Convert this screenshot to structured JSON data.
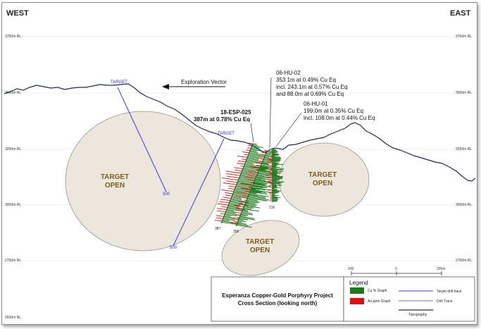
{
  "directions": {
    "west": "WEST",
    "east": "EAST"
  },
  "rl_labels": [
    "3750m RL",
    "3500m RL",
    "3250m RL",
    "3000m RL",
    "2750m RL",
    "2500m RL"
  ],
  "targets": {
    "open_label_line1": "TARGET",
    "open_label_line2": "OPEN",
    "drill_target_label": "TARGET",
    "drill_depth_label": "500"
  },
  "exploration_vector": "Exploration Vector",
  "holes": {
    "esp025": {
      "name": "18-ESP-025",
      "result": "387m at 0.78% Cu Eq"
    },
    "hu02": {
      "name": "06-HU-02",
      "line1": "353.1m at 0.49% Cu Eq",
      "line2": "incl. 243.1m at 0.57% Cu Eq",
      "line3": "and 88.0m at 0.69% Cu Eq"
    },
    "hu01": {
      "name": "06-HU-01",
      "line1": "199.0m at 0.35% Cu Eq",
      "line2": "incl. 108.0m at 0.44% Cu Eq"
    },
    "depths": [
      "387",
      "355",
      "216"
    ]
  },
  "scale": {
    "labels": [
      "200",
      "0",
      "200m"
    ]
  },
  "title": {
    "line1": "Esperanza Copper-Gold Porphyry Project",
    "line2": "Cross Section (looking north)"
  },
  "legend": {
    "heading": "Legend",
    "cu": "Cu % Graph",
    "au": "Au ppm Graph",
    "target": "Target drill trace",
    "drill": "Drill Trace",
    "topo": "Topography"
  },
  "colors": {
    "cu": "#1a7a1a",
    "au": "#e01010",
    "target_trace": "#3a3ad6",
    "topography": "#1c2a5a",
    "target_fill": "#ece6dc"
  }
}
